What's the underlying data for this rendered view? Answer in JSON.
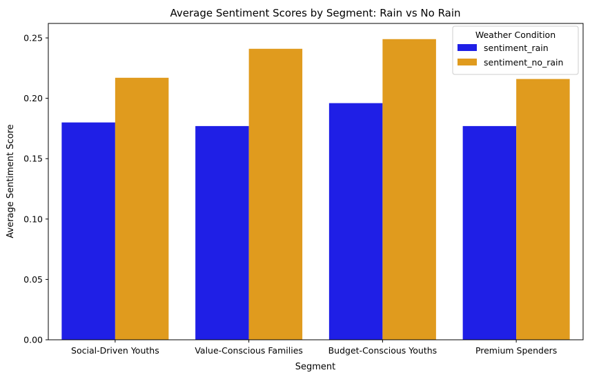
{
  "chart_data": {
    "type": "bar",
    "title": "Average Sentiment Scores by Segment: Rain vs No Rain",
    "xlabel": "Segment",
    "ylabel": "Average Sentiment Score",
    "categories": [
      "Social-Driven Youths",
      "Value-Conscious Families",
      "Budget-Conscious Youths",
      "Premium Spenders"
    ],
    "series": [
      {
        "name": "sentiment_rain",
        "color": "#1f1fe6",
        "values": [
          0.18,
          0.177,
          0.196,
          0.177
        ]
      },
      {
        "name": "sentiment_no_rain",
        "color": "#e09b1e",
        "values": [
          0.217,
          0.241,
          0.249,
          0.216
        ]
      }
    ],
    "ylim": [
      0,
      0.262
    ],
    "yticks": [
      "0.00",
      "0.05",
      "0.10",
      "0.15",
      "0.20",
      "0.25"
    ],
    "ytick_values": [
      0,
      0.05,
      0.1,
      0.15,
      0.2,
      0.25
    ],
    "grid": false,
    "legend": {
      "title": "Weather Condition",
      "placement": "top-right"
    }
  }
}
